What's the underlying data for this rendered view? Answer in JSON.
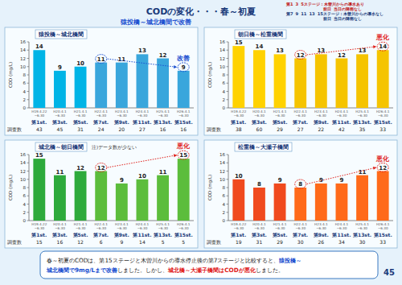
{
  "title": "CODの変化・・・春～初夏",
  "notes": [
    "第1･3･5ステージ：木曽川からの導水あり",
    "前日･当日の降雨なし",
    "第7･9･11･13･15ステージ：木曽川からの導水なし",
    "前日･当日の降雨なし"
  ],
  "banner": "猿投橋～城北橋間で改善",
  "chart_data": [
    {
      "type": "bar",
      "title": "猿投橋～城北橋間",
      "y_label": "COD (mg/L)",
      "categories": [
        "第1st.",
        "第3st.",
        "第5st.",
        "第7st.",
        "第9st.",
        "第11st.",
        "第13st.",
        "第15st."
      ],
      "periods": [
        "H19.4.22~6.30",
        "H20.4.1~6.30",
        "H21.4.1~6.30",
        "H22.4.1~6.30",
        "H23.4.1~6.30",
        "H24.4.1~6.30",
        "H25.4.1~6.30",
        "H26.4.1~6.30"
      ],
      "values": [
        14,
        9,
        10,
        11,
        11,
        13,
        12,
        9
      ],
      "colors": [
        "#00b4e6",
        "#00b4e6",
        "#00b4e6",
        "#39a6dc",
        "#39a6dc",
        "#39a6dc",
        "#39a6dc",
        "#39a6dc"
      ],
      "ylim": [
        0,
        16
      ],
      "yticks": [
        0,
        2,
        4,
        6,
        8,
        10,
        12,
        14,
        16
      ],
      "data_labels": true,
      "counts_label": "調査数",
      "counts": [
        43,
        45,
        31,
        24,
        20,
        27,
        16,
        16
      ],
      "annotation": {
        "text": "改善",
        "color": "#1a4fd0"
      }
    },
    {
      "type": "bar",
      "title": "朝日橋～松重橋間",
      "y_label": "COD (mg/L)",
      "categories": [
        "第1st.",
        "第3st.",
        "第5st.",
        "第7st.",
        "第9st.",
        "第11st.",
        "第13st.",
        "第15st."
      ],
      "periods": [
        "H19.4.22~6.30",
        "H20.4.1~6.30",
        "H21.4.1~6.30",
        "H22.4.1~6.30",
        "H23.4.1~6.30",
        "H24.4.1~6.30",
        "H25.4.1~6.30",
        "H26.4.1~6.30"
      ],
      "values": [
        15,
        14,
        13,
        12,
        13,
        12,
        13,
        14
      ],
      "colors": [
        "#ffd200",
        "#ffd200",
        "#ffd200",
        "#f5c400",
        "#f5c400",
        "#f5c400",
        "#f5c400",
        "#f5c400"
      ],
      "ylim": [
        0,
        16
      ],
      "yticks": [
        0,
        2,
        4,
        6,
        8,
        10,
        12,
        14,
        16
      ],
      "data_labels": true,
      "counts_label": "調査数",
      "counts": [
        38,
        60,
        29,
        27,
        22,
        42,
        35,
        33
      ],
      "annotation": {
        "text": "悪化",
        "color": "#e0201a"
      }
    },
    {
      "type": "bar",
      "title": "城北橋～朝日橋間",
      "y_label": "COD (mg/L)",
      "note": "注)データ数が少ない",
      "categories": [
        "第1st.",
        "第3st.",
        "第5st.",
        "第7st.",
        "第9st.",
        "第11st.",
        "第13st.",
        "第15st."
      ],
      "periods": [
        "H19.4.22~6.30",
        "H20.4.1~6.30",
        "H21.4.1~6.30",
        "H22.4.1~6.30",
        "H23.4.1~6.30",
        "H24.4.1~6.30",
        "H25.4.1~6.30",
        "H26.4.1~6.30"
      ],
      "values": [
        15,
        11,
        12,
        12,
        9,
        10,
        11,
        15
      ],
      "colors": [
        "#2eaa3c",
        "#2eaa3c",
        "#2eaa3c",
        "#5cbd3c",
        "#5cbd3c",
        "#5cbd3c",
        "#5cbd3c",
        "#5cbd3c"
      ],
      "ylim": [
        0,
        16
      ],
      "yticks": [
        0,
        2,
        4,
        6,
        8,
        10,
        12,
        14,
        16
      ],
      "data_labels": true,
      "counts_label": "調査数",
      "counts": [
        15,
        16,
        12,
        6,
        9,
        14,
        5,
        5
      ],
      "annotation": {
        "text": "悪化",
        "color": "#e0201a"
      }
    },
    {
      "type": "bar",
      "title": "松重橋～大瀬子橋間",
      "y_label": "COD (mg/L)",
      "categories": [
        "第1st.",
        "第3st.",
        "第5st.",
        "第7st.",
        "第9st.",
        "第11st.",
        "第13st.",
        "第15st."
      ],
      "periods": [
        "H19.4.22~6.30",
        "H20.4.1~6.30",
        "H21.4.1~6.30",
        "H22.4.1~6.30",
        "H23.4.1~6.30",
        "H24.4.1~6.30",
        "H25.4.1~6.30",
        "H26.4.1~6.30"
      ],
      "values": [
        10,
        8,
        9,
        8,
        9,
        9,
        11,
        12
      ],
      "colors": [
        "#f04a1e",
        "#f04a1e",
        "#f04a1e",
        "#ff6a1a",
        "#ff6a1a",
        "#ff6a1a",
        "#ff6a1a",
        "#ff6a1a"
      ],
      "ylim": [
        0,
        16
      ],
      "yticks": [
        0,
        2,
        4,
        6,
        8,
        10,
        12,
        14,
        16
      ],
      "data_labels": true,
      "counts_label": "調査数",
      "counts": [
        19,
        31,
        29,
        30,
        26,
        34,
        30,
        33
      ],
      "annotation": {
        "text": "悪化",
        "color": "#e0201a"
      }
    }
  ],
  "footer": {
    "lines": [
      [
        {
          "text": "春～初夏のCODは、第15ステージと木曽川からの導水停止後の第7ステージと比較すると、"
        },
        {
          "text": "猿投橋～",
          "color": "#1a4fd0"
        }
      ],
      [
        {
          "text": "城北橋間で9mg/Lまで改善",
          "color": "#1a4fd0"
        },
        {
          "text": "しました。しかし、"
        },
        {
          "text": "城北橋～大瀬子橋間はCODが悪化",
          "color": "#e0201a"
        },
        {
          "text": "しました。"
        }
      ]
    ]
  },
  "page_number": "45"
}
